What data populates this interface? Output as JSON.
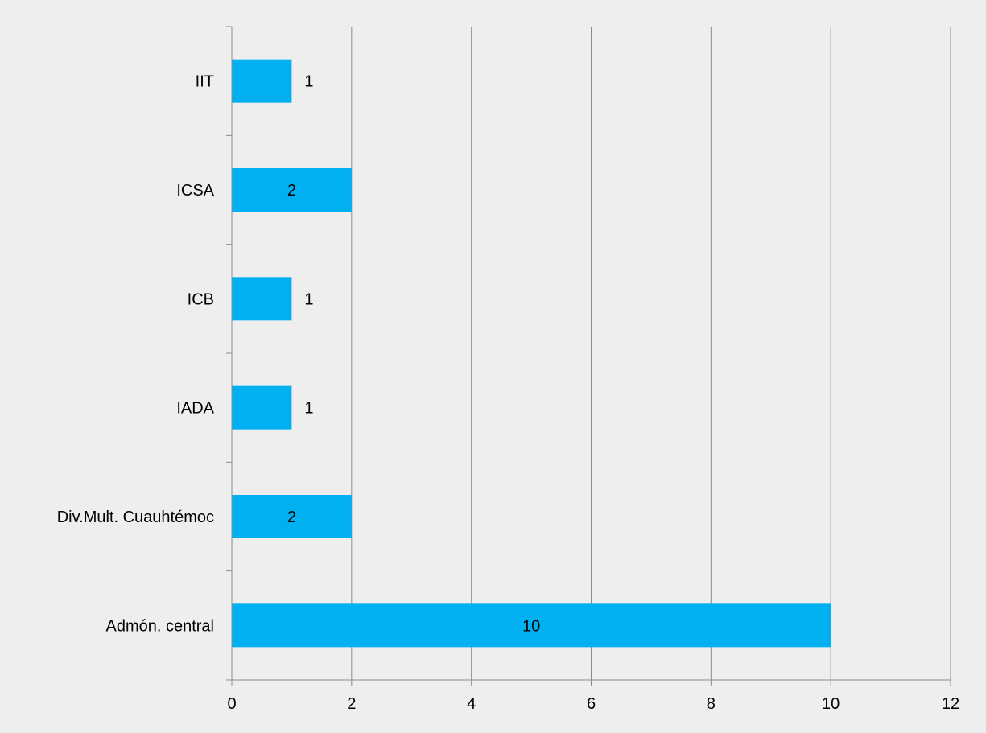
{
  "chart_data": {
    "type": "bar",
    "orientation": "horizontal",
    "title": "",
    "xlabel": "",
    "ylabel": "",
    "categories": [
      "Admón. central",
      "Div.Mult. Cuauhtémoc",
      "IADA",
      "ICB",
      "ICSA",
      "IIT"
    ],
    "values": [
      10,
      2,
      1,
      1,
      2,
      1
    ],
    "data_labels": [
      "10",
      "2",
      "1",
      "1",
      "2",
      "1"
    ],
    "xlim": [
      0,
      12
    ],
    "xticks": [
      "0",
      "2",
      "4",
      "6",
      "8",
      "10",
      "12"
    ],
    "grid": true,
    "legend": "none",
    "colors": {
      "bar": "#00b0f0",
      "background": "#eeeeee",
      "grid": "#8c8c8c"
    }
  }
}
